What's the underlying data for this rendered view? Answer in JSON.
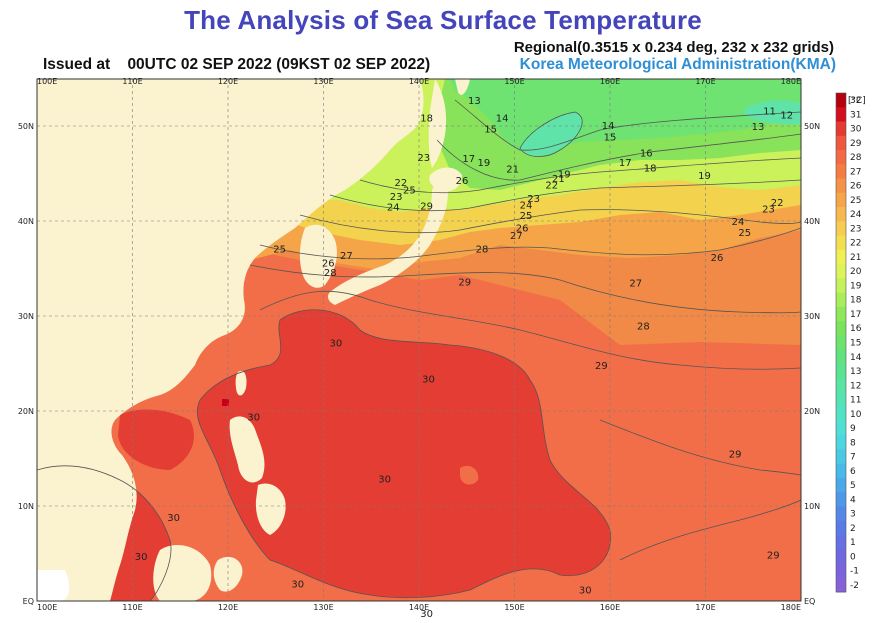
{
  "header": {
    "title": "The Analysis of Sea Surface Temperature",
    "regional": "Regional(0.3515 x 0.234 deg, 232 x 232 grids)",
    "issued_label": "Issued at",
    "issued_time": "00UTC 02 SEP 2022 (09KST 02 SEP 2022)",
    "agency": "Korea Meteorological Administration(KMA)"
  },
  "map": {
    "lon_range": [
      100,
      180
    ],
    "lat_range": [
      0,
      55
    ],
    "lon_ticks": [
      "100E",
      "110E",
      "120E",
      "130E",
      "140E",
      "150E",
      "160E",
      "170E",
      "180E"
    ],
    "lat_ticks": [
      "EQ",
      "10N",
      "20N",
      "30N",
      "40N",
      "50N"
    ],
    "grid": true,
    "colors": {
      "land": "#fbf2cf",
      "sea_warm": "#f26e49",
      "sea_hot": "#e43d33",
      "sea_orange": "#f6a248",
      "sea_yellow": "#f2e64c",
      "sea_green": "#88e058",
      "sea_cyan": "#59e3a8"
    },
    "isotherm_labels": [
      {
        "text": "13",
        "lon": 145.8,
        "lat": 52.3
      },
      {
        "text": "14",
        "lon": 148.7,
        "lat": 50.5
      },
      {
        "text": "15",
        "lon": 147.5,
        "lat": 49.3
      },
      {
        "text": "18",
        "lon": 140.8,
        "lat": 50.5
      },
      {
        "text": "17",
        "lon": 145.2,
        "lat": 46.2
      },
      {
        "text": "19",
        "lon": 146.8,
        "lat": 45.8
      },
      {
        "text": "21",
        "lon": 149.8,
        "lat": 45.1
      },
      {
        "text": "23",
        "lon": 140.5,
        "lat": 46.3
      },
      {
        "text": "22",
        "lon": 138.1,
        "lat": 43.7
      },
      {
        "text": "24",
        "lon": 137.3,
        "lat": 41.1
      },
      {
        "text": "23",
        "lon": 137.6,
        "lat": 42.2
      },
      {
        "text": "25",
        "lon": 139.0,
        "lat": 42.9
      },
      {
        "text": "29",
        "lon": 140.8,
        "lat": 41.2
      },
      {
        "text": "26",
        "lon": 144.5,
        "lat": 43.9
      },
      {
        "text": "19",
        "lon": 155.2,
        "lat": 44.6
      },
      {
        "text": "21",
        "lon": 154.6,
        "lat": 44.1
      },
      {
        "text": "22",
        "lon": 153.9,
        "lat": 43.4
      },
      {
        "text": "23",
        "lon": 152.0,
        "lat": 42.0
      },
      {
        "text": "24",
        "lon": 151.2,
        "lat": 41.3
      },
      {
        "text": "25",
        "lon": 151.2,
        "lat": 40.2
      },
      {
        "text": "26",
        "lon": 150.8,
        "lat": 38.9
      },
      {
        "text": "27",
        "lon": 150.2,
        "lat": 38.1
      },
      {
        "text": "28",
        "lon": 146.6,
        "lat": 36.7
      },
      {
        "text": "25",
        "lon": 125.4,
        "lat": 36.7
      },
      {
        "text": "27",
        "lon": 132.4,
        "lat": 36.0
      },
      {
        "text": "26",
        "lon": 130.5,
        "lat": 35.2
      },
      {
        "text": "28",
        "lon": 130.7,
        "lat": 34.2
      },
      {
        "text": "29",
        "lon": 144.8,
        "lat": 33.2
      },
      {
        "text": "30",
        "lon": 131.3,
        "lat": 26.8
      },
      {
        "text": "30",
        "lon": 141.0,
        "lat": 23.0
      },
      {
        "text": "30",
        "lon": 122.7,
        "lat": 19.0
      },
      {
        "text": "30",
        "lon": 136.4,
        "lat": 12.5
      },
      {
        "text": "30",
        "lon": 114.3,
        "lat": 8.4
      },
      {
        "text": "30",
        "lon": 110.9,
        "lat": 4.3
      },
      {
        "text": "30",
        "lon": 127.3,
        "lat": 1.4
      },
      {
        "text": "30",
        "lon": 140.8,
        "lat": -1.7
      },
      {
        "text": "30",
        "lon": 157.4,
        "lat": 0.8
      },
      {
        "text": "16",
        "lon": 163.8,
        "lat": 46.8
      },
      {
        "text": "14",
        "lon": 159.8,
        "lat": 49.7
      },
      {
        "text": "15",
        "lon": 160.0,
        "lat": 48.5
      },
      {
        "text": "17",
        "lon": 161.6,
        "lat": 45.8
      },
      {
        "text": "18",
        "lon": 164.2,
        "lat": 45.2
      },
      {
        "text": "19",
        "lon": 169.9,
        "lat": 44.4
      },
      {
        "text": "13",
        "lon": 175.5,
        "lat": 49.6
      },
      {
        "text": "11",
        "lon": 176.7,
        "lat": 51.2
      },
      {
        "text": "12",
        "lon": 178.5,
        "lat": 50.8
      },
      {
        "text": "24",
        "lon": 173.4,
        "lat": 39.6
      },
      {
        "text": "25",
        "lon": 174.1,
        "lat": 38.4
      },
      {
        "text": "22",
        "lon": 177.5,
        "lat": 41.6
      },
      {
        "text": "23",
        "lon": 176.6,
        "lat": 40.9
      },
      {
        "text": "26",
        "lon": 171.2,
        "lat": 35.8
      },
      {
        "text": "27",
        "lon": 162.7,
        "lat": 33.1
      },
      {
        "text": "28",
        "lon": 163.5,
        "lat": 28.6
      },
      {
        "text": "29",
        "lon": 159.1,
        "lat": 24.4
      },
      {
        "text": "29",
        "lon": 173.1,
        "lat": 15.1
      },
      {
        "text": "29",
        "lon": 177.1,
        "lat": 4.5
      }
    ]
  },
  "colorbar": {
    "unit": "[°C]",
    "labels": [
      "32",
      "31",
      "30",
      "29",
      "28",
      "27",
      "26",
      "25",
      "24",
      "23",
      "22",
      "21",
      "20",
      "19",
      "18",
      "17",
      "16",
      "15",
      "14",
      "13",
      "12",
      "11",
      "10",
      "9",
      "8",
      "7",
      "6",
      "5",
      "4",
      "3",
      "2",
      "1",
      "0",
      "-1",
      "-2"
    ],
    "colors": [
      "#b5000f",
      "#d40f1d",
      "#e43a33",
      "#f0573f",
      "#f36a44",
      "#f57d44",
      "#f69247",
      "#f7a54b",
      "#f8b850",
      "#f6cd52",
      "#f3df52",
      "#eef055",
      "#dcf35b",
      "#c4f25c",
      "#a8ee5a",
      "#8fe85a",
      "#7ae35d",
      "#6ee36c",
      "#62e27e",
      "#5ce390",
      "#58e4a2",
      "#55e3b4",
      "#52e2c6",
      "#4fdfd5",
      "#4cd6e0",
      "#4ac9e5",
      "#49b9e7",
      "#4aa9e8",
      "#4d98e8",
      "#5388e8",
      "#5a7ae7",
      "#6470e4",
      "#6f69e0",
      "#7a64dc",
      "#8662d8"
    ]
  }
}
